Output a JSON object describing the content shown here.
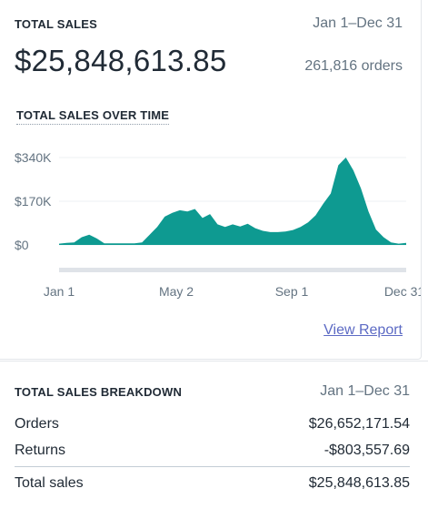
{
  "summary": {
    "title": "TOTAL SALES",
    "date_range": "Jan 1–Dec 31",
    "total": "$25,848,613.85",
    "orders": "261,816 orders"
  },
  "chart_section": {
    "title": "TOTAL SALES OVER TIME",
    "link": "View Report"
  },
  "chart_data": {
    "type": "area",
    "title": "",
    "xlabel": "",
    "ylabel": "",
    "x_ticks": [
      "Jan 1",
      "May 2",
      "Sep 1",
      "Dec 31"
    ],
    "y_ticks": [
      "$0",
      "$170K",
      "$340K"
    ],
    "ylim": [
      0,
      340000
    ],
    "grid": true,
    "color": "#0e9a91",
    "series": [
      {
        "x": [
          "Jan 1",
          "Jan 15",
          "Jan 25",
          "Feb 5",
          "Feb 10",
          "Feb 20",
          "Mar 1",
          "Mar 10",
          "Mar 20",
          "Apr 1",
          "Apr 10",
          "Apr 20",
          "Apr 25",
          "May 1",
          "May 10",
          "May 20",
          "Jun 1",
          "Jun 10",
          "Jun 15",
          "Jun 20",
          "Jun 25",
          "Jul 1",
          "Jul 10",
          "Jul 20",
          "Aug 1",
          "Aug 10",
          "Aug 20",
          "Sep 1",
          "Sep 15",
          "Oct 1",
          "Oct 10",
          "Oct 20",
          "Nov 1",
          "Nov 10",
          "Nov 15",
          "Nov 20",
          "Nov 23",
          "Nov 25",
          "Nov 27",
          "Nov 28",
          "Dec 1",
          "Dec 5",
          "Dec 10",
          "Dec 15",
          "Dec 20",
          "Dec 25",
          "Dec 31"
        ],
        "values": [
          5000,
          8000,
          10000,
          30000,
          40000,
          25000,
          6000,
          6000,
          6000,
          6000,
          6000,
          10000,
          40000,
          70000,
          110000,
          125000,
          135000,
          130000,
          140000,
          105000,
          120000,
          80000,
          70000,
          80000,
          72000,
          82000,
          65000,
          55000,
          50000,
          50000,
          52000,
          58000,
          70000,
          88000,
          115000,
          160000,
          200000,
          310000,
          340000,
          290000,
          220000,
          130000,
          60000,
          30000,
          10000,
          5000,
          8000
        ]
      }
    ]
  },
  "breakdown": {
    "title": "TOTAL SALES BREAKDOWN",
    "date_range": "Jan 1–Dec 31",
    "rows": [
      {
        "label": "Orders",
        "value": "$26,652,171.54"
      },
      {
        "label": "Returns",
        "value": "-$803,557.69"
      },
      {
        "label": "Total sales",
        "value": "$25,848,613.85"
      }
    ]
  }
}
